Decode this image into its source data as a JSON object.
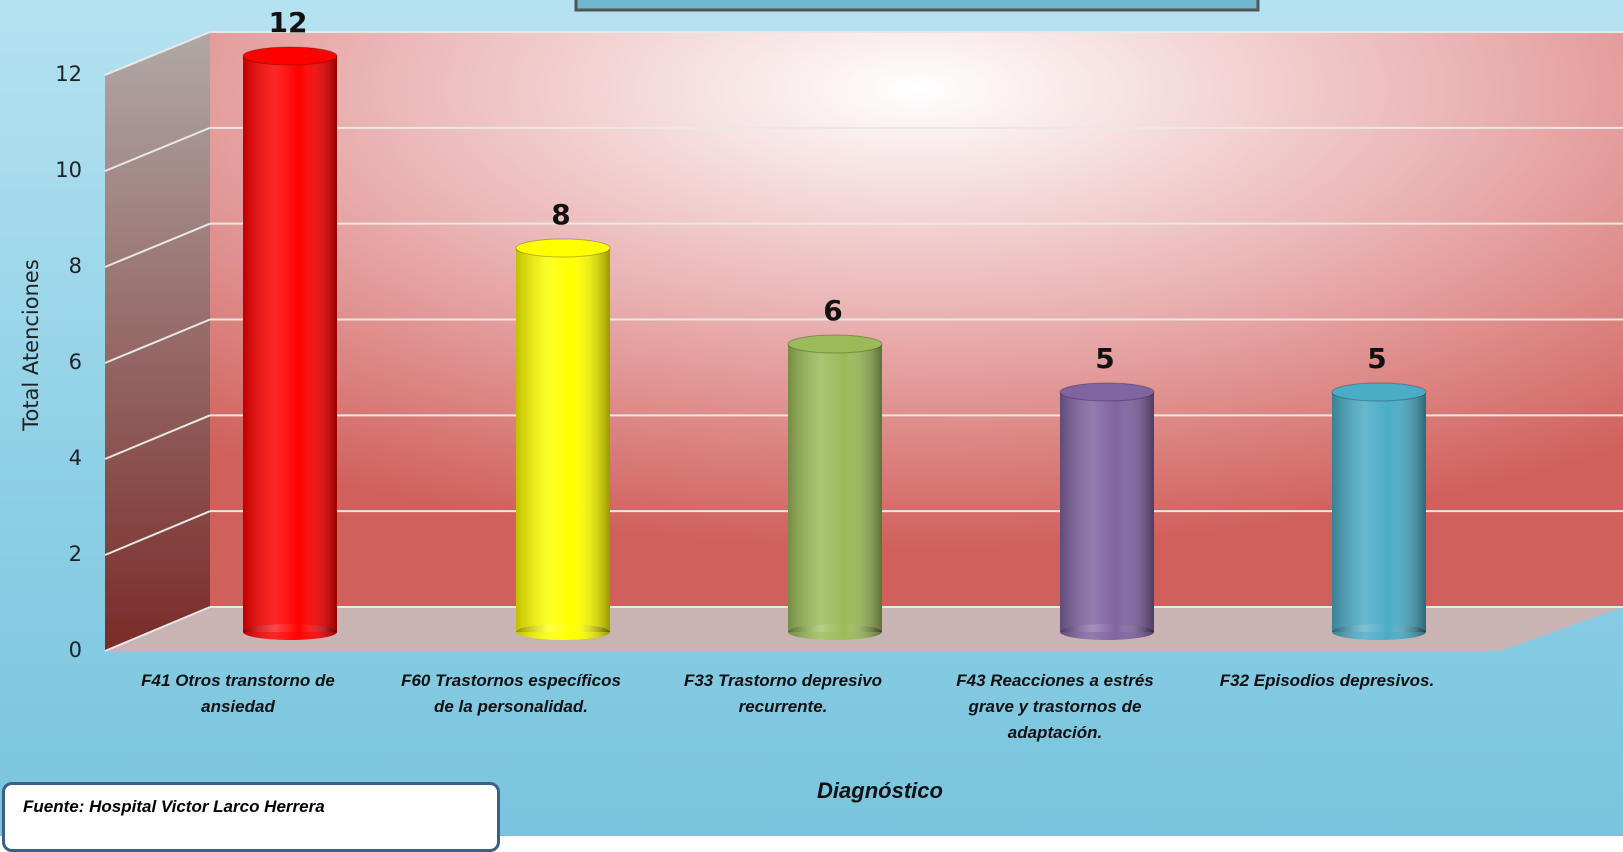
{
  "chart_data": {
    "type": "bar",
    "y_label": "Total Atenciones",
    "x_label": "Diagnóstico",
    "source": "Fuente: Hospital Victor Larco Herrera",
    "categories": [
      "F41 Otros transtorno de ansiedad",
      "F60 Trastornos específicos de la personalidad.",
      "F33 Trastorno depresivo recurrente.",
      "F43 Reacciones a estrés grave y trastornos de adaptación.",
      "F32 Episodios depresivos."
    ],
    "values": [
      12,
      8,
      6,
      5,
      5
    ],
    "colors": [
      "#ff0000",
      "#ffff00",
      "#9bbb59",
      "#8064a2",
      "#4bacc6"
    ],
    "ylim": [
      0,
      12
    ],
    "yticks": [
      0,
      2,
      4,
      6,
      8,
      10,
      12
    ],
    "grid": true
  }
}
